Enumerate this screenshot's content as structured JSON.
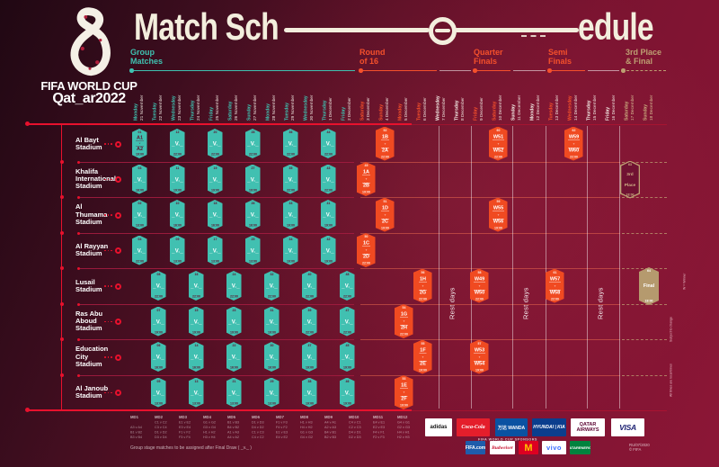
{
  "colors": {
    "background_maroon": "#7a1330",
    "teal": "#41c0b1",
    "orange": "#f04a21",
    "gold": "#b59a6e",
    "crimson_line": "#e8112d",
    "cream": "#f3eedd"
  },
  "title": {
    "left": "Match Sch",
    "right": "edule"
  },
  "brand": {
    "fifa": "FIFA WORLD CUP",
    "qatar": "Qat_ar2022"
  },
  "sections": [
    {
      "id": "group",
      "lines": "Group\nMatches",
      "tone": "teal"
    },
    {
      "id": "r16",
      "lines": "Round\nof 16",
      "tone": "orange"
    },
    {
      "id": "qf",
      "lines": "Quarter\nFinals",
      "tone": "orange"
    },
    {
      "id": "sf",
      "lines": "Semi\nFinals",
      "tone": "orange"
    },
    {
      "id": "final",
      "lines": "3rd Place\n& Final",
      "tone": "gold"
    }
  ],
  "timeline": {
    "dates": [
      {
        "day": "Monday",
        "date": "21 November",
        "tone": "teal"
      },
      {
        "day": "Tuesday",
        "date": "22 November",
        "tone": "teal"
      },
      {
        "day": "Wednesday",
        "date": "23 November",
        "tone": "teal"
      },
      {
        "day": "Thursday",
        "date": "24 November",
        "tone": "teal"
      },
      {
        "day": "Friday",
        "date": "25 November",
        "tone": "teal"
      },
      {
        "day": "Saturday",
        "date": "26 November",
        "tone": "teal"
      },
      {
        "day": "Sunday",
        "date": "27 November",
        "tone": "teal"
      },
      {
        "day": "Monday",
        "date": "28 November",
        "tone": "teal"
      },
      {
        "day": "Tuesday",
        "date": "29 November",
        "tone": "teal"
      },
      {
        "day": "Wednesday",
        "date": "30 November",
        "tone": "teal"
      },
      {
        "day": "Thursday",
        "date": "1 December",
        "tone": "teal"
      },
      {
        "day": "Friday",
        "date": "2 December",
        "tone": "teal"
      },
      {
        "day": "Saturday",
        "date": "3 December",
        "tone": "orange"
      },
      {
        "day": "Sunday",
        "date": "4 December",
        "tone": "orange"
      },
      {
        "day": "Monday",
        "date": "5 December",
        "tone": "orange"
      },
      {
        "day": "Tuesday",
        "date": "6 December",
        "tone": "orange"
      },
      {
        "day": "Wednesday",
        "date": "7 December",
        "tone": "white"
      },
      {
        "day": "Thursday",
        "date": "8 December",
        "tone": "white"
      },
      {
        "day": "Friday",
        "date": "9 December",
        "tone": "orange"
      },
      {
        "day": "Saturday",
        "date": "10 December",
        "tone": "orange"
      },
      {
        "day": "Sunday",
        "date": "11 December",
        "tone": "white"
      },
      {
        "day": "Monday",
        "date": "12 December",
        "tone": "white"
      },
      {
        "day": "Tuesday",
        "date": "13 December",
        "tone": "orange"
      },
      {
        "day": "Wednesday",
        "date": "14 December",
        "tone": "orange"
      },
      {
        "day": "Thursday",
        "date": "15 December",
        "tone": "white"
      },
      {
        "day": "Friday",
        "date": "16 December",
        "tone": "white"
      },
      {
        "day": "Saturday",
        "date": "17 December",
        "tone": "gold"
      },
      {
        "day": "Sunday",
        "date": "18 December",
        "tone": "gold"
      }
    ]
  },
  "grid": {
    "stadiums": [
      {
        "lines": [
          "Al Bayt",
          "Stadium"
        ]
      },
      {
        "lines": [
          "Khalifa",
          "International",
          "Stadium"
        ]
      },
      {
        "lines": [
          "Al",
          "Thumama",
          "Stadium"
        ]
      },
      {
        "lines": [
          "Al Rayyan",
          "Stadium"
        ]
      },
      {
        "lines": [
          "Lusail",
          "Stadium"
        ]
      },
      {
        "lines": [
          "Ras Abu",
          "Aboud",
          "Stadium"
        ]
      },
      {
        "lines": [
          "Education",
          "City",
          "Stadium"
        ]
      },
      {
        "lines": [
          "Al Janoub",
          "Stadium"
        ]
      }
    ],
    "placeholder": "_V._",
    "rest_label": "Rest days",
    "cells": [
      {
        "r": 0,
        "c": 0,
        "k": "open",
        "n": "01",
        "a": "A1",
        "b": "A2",
        "t": "19:00"
      },
      {
        "r": 0,
        "c": 2,
        "k": "g",
        "n": "12",
        "t": "22:00"
      },
      {
        "r": 0,
        "c": 4,
        "k": "g",
        "n": "20",
        "t": "22:00"
      },
      {
        "r": 0,
        "c": 6,
        "k": "g",
        "n": "28",
        "t": "22:00"
      },
      {
        "r": 0,
        "c": 8,
        "k": "g",
        "n": "36",
        "t": "22:00"
      },
      {
        "r": 0,
        "c": 10,
        "k": "g",
        "n": "44",
        "t": "22:00"
      },
      {
        "r": 0,
        "c": 13,
        "k": "ko",
        "n": "52",
        "a": "1B",
        "b": "2A",
        "t": "22:00"
      },
      {
        "r": 0,
        "c": 19,
        "k": "ko",
        "n": "60",
        "a": "W51",
        "b": "W52",
        "t": "22:00"
      },
      {
        "r": 0,
        "c": 23,
        "k": "ko",
        "n": "62",
        "a": "W59",
        "b": "W60",
        "t": "22:00"
      },
      {
        "r": 1,
        "c": 0,
        "k": "g",
        "n": "03",
        "t": "16:00"
      },
      {
        "r": 1,
        "c": 2,
        "k": "g",
        "n": "11",
        "t": "19:00"
      },
      {
        "r": 1,
        "c": 4,
        "k": "g",
        "n": "19",
        "t": "19:00"
      },
      {
        "r": 1,
        "c": 6,
        "k": "g",
        "n": "27",
        "t": "19:00"
      },
      {
        "r": 1,
        "c": 8,
        "k": "g",
        "n": "35",
        "t": "22:00"
      },
      {
        "r": 1,
        "c": 10,
        "k": "g",
        "n": "43",
        "t": "22:00"
      },
      {
        "r": 1,
        "c": 12,
        "k": "ko",
        "n": "49",
        "a": "1A",
        "b": "2B",
        "t": "19:00"
      },
      {
        "r": 1,
        "c": 26,
        "k": "third",
        "n": "63",
        "a": "3rd",
        "b": "Place",
        "t": "18:00"
      },
      {
        "r": 2,
        "c": 0,
        "k": "g",
        "n": "02",
        "t": "13:00"
      },
      {
        "r": 2,
        "c": 2,
        "k": "g",
        "n": "10",
        "t": "16:00"
      },
      {
        "r": 2,
        "c": 4,
        "k": "g",
        "n": "18",
        "t": "16:00"
      },
      {
        "r": 2,
        "c": 6,
        "k": "g",
        "n": "26",
        "t": "16:00"
      },
      {
        "r": 2,
        "c": 8,
        "k": "g",
        "n": "33",
        "t": "19:00"
      },
      {
        "r": 2,
        "c": 10,
        "k": "g",
        "n": "41",
        "t": "19:00"
      },
      {
        "r": 2,
        "c": 13,
        "k": "ko",
        "n": "51",
        "a": "1D",
        "b": "2C",
        "t": "19:00"
      },
      {
        "r": 2,
        "c": 19,
        "k": "ko",
        "n": "59",
        "a": "W55",
        "b": "W56",
        "t": "19:00"
      },
      {
        "r": 3,
        "c": 0,
        "k": "g",
        "n": "04",
        "t": "22:00"
      },
      {
        "r": 3,
        "c": 2,
        "k": "g",
        "n": "09",
        "t": "13:00"
      },
      {
        "r": 3,
        "c": 4,
        "k": "g",
        "n": "17",
        "t": "13:00"
      },
      {
        "r": 3,
        "c": 6,
        "k": "g",
        "n": "25",
        "t": "13:00"
      },
      {
        "r": 3,
        "c": 8,
        "k": "g",
        "n": "34",
        "t": "19:00"
      },
      {
        "r": 3,
        "c": 10,
        "k": "g",
        "n": "42",
        "t": "19:00"
      },
      {
        "r": 3,
        "c": 12,
        "k": "ko",
        "n": "50",
        "a": "1C",
        "b": "2D",
        "t": "22:00"
      },
      {
        "r": 4,
        "c": 1,
        "k": "g",
        "n": "08",
        "t": "22:00"
      },
      {
        "r": 4,
        "c": 3,
        "k": "g",
        "n": "16",
        "t": "22:00"
      },
      {
        "r": 4,
        "c": 5,
        "k": "g",
        "n": "24",
        "t": "22:00"
      },
      {
        "r": 4,
        "c": 7,
        "k": "g",
        "n": "32",
        "t": "22:00"
      },
      {
        "r": 4,
        "c": 9,
        "k": "g",
        "n": "40",
        "t": "22:00"
      },
      {
        "r": 4,
        "c": 11,
        "k": "g",
        "n": "48",
        "t": "22:00"
      },
      {
        "r": 4,
        "c": 15,
        "k": "ko",
        "n": "56",
        "a": "1H",
        "b": "2G",
        "t": "22:00"
      },
      {
        "r": 4,
        "c": 18,
        "k": "ko",
        "n": "58",
        "a": "W49",
        "b": "W50",
        "t": "22:00"
      },
      {
        "r": 4,
        "c": 22,
        "k": "ko",
        "n": "61",
        "a": "W57",
        "b": "W58",
        "t": "22:00"
      },
      {
        "r": 4,
        "c": 27,
        "k": "final",
        "n": "64",
        "a": "Final",
        "t": "18:00"
      },
      {
        "r": 5,
        "c": 1,
        "k": "g",
        "n": "07",
        "t": "19:00"
      },
      {
        "r": 5,
        "c": 3,
        "k": "g",
        "n": "15",
        "t": "19:00"
      },
      {
        "r": 5,
        "c": 5,
        "k": "g",
        "n": "23",
        "t": "19:00"
      },
      {
        "r": 5,
        "c": 7,
        "k": "g",
        "n": "31",
        "t": "19:00"
      },
      {
        "r": 5,
        "c": 9,
        "k": "g",
        "n": "39",
        "t": "22:00"
      },
      {
        "r": 5,
        "c": 11,
        "k": "g",
        "n": "47",
        "t": "22:00"
      },
      {
        "r": 5,
        "c": 14,
        "k": "ko",
        "n": "54",
        "a": "1G",
        "b": "2H",
        "t": "22:00"
      },
      {
        "r": 6,
        "c": 1,
        "k": "g",
        "n": "06",
        "t": "16:00"
      },
      {
        "r": 6,
        "c": 3,
        "k": "g",
        "n": "14",
        "t": "16:00"
      },
      {
        "r": 6,
        "c": 5,
        "k": "g",
        "n": "22",
        "t": "16:00"
      },
      {
        "r": 6,
        "c": 7,
        "k": "g",
        "n": "30",
        "t": "16:00"
      },
      {
        "r": 6,
        "c": 9,
        "k": "g",
        "n": "37",
        "t": "19:00"
      },
      {
        "r": 6,
        "c": 11,
        "k": "g",
        "n": "45",
        "t": "19:00"
      },
      {
        "r": 6,
        "c": 15,
        "k": "ko",
        "n": "55",
        "a": "1F",
        "b": "2E",
        "t": "19:00"
      },
      {
        "r": 6,
        "c": 18,
        "k": "ko",
        "n": "57",
        "a": "W53",
        "b": "W54",
        "t": "19:00"
      },
      {
        "r": 7,
        "c": 1,
        "k": "g",
        "n": "05",
        "t": "13:00"
      },
      {
        "r": 7,
        "c": 3,
        "k": "g",
        "n": "13",
        "t": "13:00"
      },
      {
        "r": 7,
        "c": 5,
        "k": "g",
        "n": "21",
        "t": "13:00"
      },
      {
        "r": 7,
        "c": 7,
        "k": "g",
        "n": "29",
        "t": "13:00"
      },
      {
        "r": 7,
        "c": 9,
        "k": "g",
        "n": "38",
        "t": "19:00"
      },
      {
        "r": 7,
        "c": 11,
        "k": "g",
        "n": "46",
        "t": "19:00"
      },
      {
        "r": 7,
        "c": 14,
        "k": "ko",
        "n": "53",
        "a": "1E",
        "b": "2F",
        "t": "19:00"
      }
    ]
  },
  "side_notes": [
    "W = Winner",
    "Subject to change",
    "All times are local times"
  ],
  "legend": {
    "note": "Group stage matches to be assigned after Final Draw ( _v._ )",
    "columns": [
      {
        "md": "MD1",
        "rows": [
          "",
          "A3 v A4",
          "B1 v B2",
          "B3 v B4"
        ]
      },
      {
        "md": "MD2",
        "rows": [
          "C1 v C2",
          "C3 v C4",
          "D1 v D2",
          "D3 v D4"
        ]
      },
      {
        "md": "MD3",
        "rows": [
          "E1 v E2",
          "E3 v E4",
          "F1 v F2",
          "F3 v F4"
        ]
      },
      {
        "md": "MD4",
        "rows": [
          "G1 v G2",
          "G3 v G4",
          "H1 v H2",
          "H3 v H4"
        ]
      },
      {
        "md": "MD5",
        "rows": [
          "B1 v B3",
          "B4 v B2",
          "A1 v A3",
          "A4 v A2"
        ]
      },
      {
        "md": "MD6",
        "rows": [
          "D1 v D3",
          "D4 v D2",
          "C1 v C3",
          "C4 v C2"
        ]
      },
      {
        "md": "MD7",
        "rows": [
          "F1 v F3",
          "F4 v F2",
          "E1 v E3",
          "E4 v E2"
        ]
      },
      {
        "md": "MD8",
        "rows": [
          "H1 v H3",
          "H4 v H2",
          "G1 v G3",
          "G4 v G2"
        ]
      },
      {
        "md": "MD9",
        "rows": [
          "A4 v A1",
          "A2 v A3",
          "B4 v B1",
          "B2 v B3"
        ]
      },
      {
        "md": "MD10",
        "rows": [
          "C4 v C1",
          "C2 v C3",
          "D4 v D1",
          "D2 v D3"
        ]
      },
      {
        "md": "MD11",
        "rows": [
          "E4 v E1",
          "E2 v E3",
          "F4 v F1",
          "F2 v F3"
        ]
      },
      {
        "md": "MD12",
        "rows": [
          "G4 v G1",
          "G2 v G3",
          "H4 v H1",
          "H2 v H3"
        ]
      }
    ]
  },
  "sponsors": {
    "partners": [
      {
        "key": "adidas",
        "name": "adidas",
        "display": "adidas"
      },
      {
        "key": "cocacola",
        "name": "Coca-Cola",
        "display": "Coca-Cola"
      },
      {
        "key": "wanda",
        "name": "Wanda",
        "display": "万达 WANDA"
      },
      {
        "key": "hyundai-kia",
        "name": "Hyundai · Kia",
        "display": "HYUNDAI | KIA"
      },
      {
        "key": "qatar-airways",
        "name": "Qatar Airways",
        "display": "QATAR AIRWAYS"
      },
      {
        "key": "visa",
        "name": "VISA",
        "display": "VISA"
      }
    ],
    "label": "FIFA WORLD CUP SPONSORS",
    "world_cup_sponsors": [
      {
        "key": "fifacom",
        "name": "FIFA.com",
        "display": "FIFA.com"
      },
      {
        "key": "budweiser",
        "name": "Budweiser",
        "display": "Budweiser"
      },
      {
        "key": "mcdonalds",
        "name": "McDonald's",
        "display": "M"
      },
      {
        "key": "vivo",
        "name": "vivo",
        "display": "vivo"
      },
      {
        "key": "qatarenergy",
        "name": "QatarEnergy",
        "display": "QATARENERGY"
      }
    ]
  },
  "imprint": [
    "RU/07/2020",
    "© FIFA"
  ]
}
